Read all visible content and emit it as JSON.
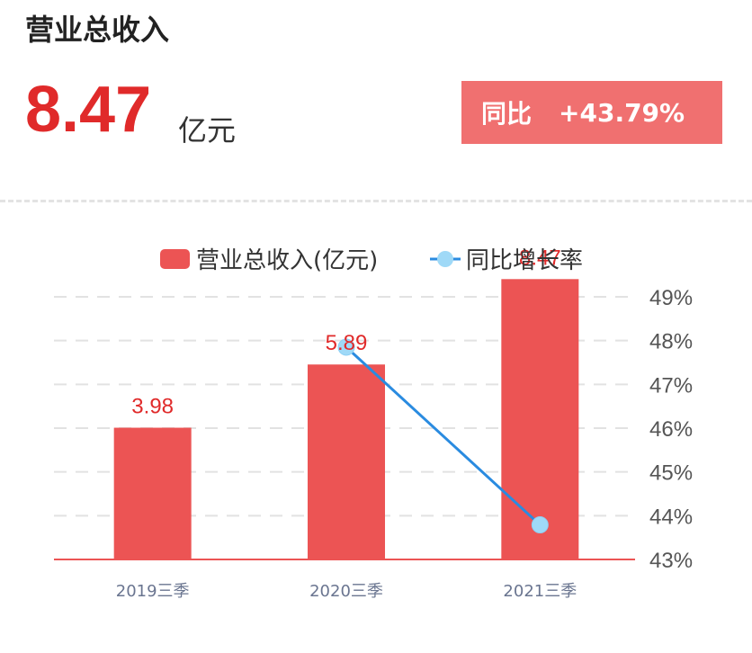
{
  "header": {
    "title": "营业总收入",
    "value": "8.47",
    "unit": "亿元",
    "yoy_label": "同比",
    "yoy_value": "+43.79%"
  },
  "colors": {
    "bar": "#ec5454",
    "line": "#2a8be0",
    "point": "#9fd9f7",
    "value_text": "#e02a2a",
    "yoy_box": "#f07070"
  },
  "chart_data": {
    "type": "bar",
    "categories": [
      "2019三季",
      "2020三季",
      "2021三季"
    ],
    "legend": [
      "营业总收入(亿元)",
      "同比增长率"
    ],
    "series": [
      {
        "name": "营业总收入(亿元)",
        "type": "bar",
        "values": [
          3.98,
          5.89,
          8.47
        ],
        "labels": [
          "3.98",
          "5.89",
          "8.47"
        ]
      },
      {
        "name": "同比增长率",
        "type": "line",
        "axis": "right",
        "values": [
          null,
          47.85,
          43.79
        ]
      }
    ],
    "y_right": {
      "ticks": [
        "49%",
        "48%",
        "47%",
        "46%",
        "45%",
        "44%",
        "43%"
      ],
      "min": 43,
      "max": 49
    },
    "grid": true
  }
}
